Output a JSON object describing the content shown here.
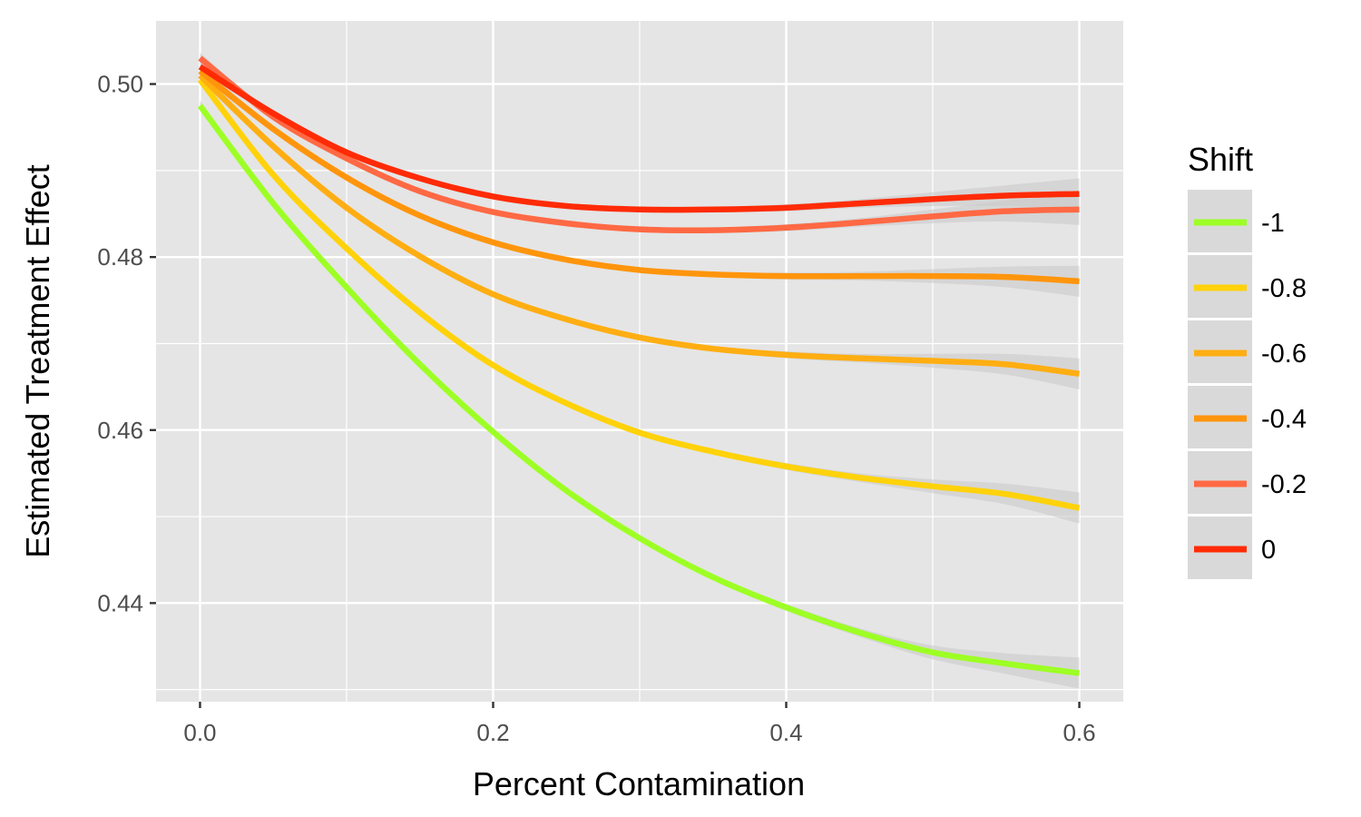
{
  "chart_data": {
    "type": "line",
    "title": "",
    "xlabel": "Percent Contamination",
    "ylabel": "Estimated Treatment Effect",
    "xlim": [
      -0.03,
      0.63
    ],
    "ylim": [
      0.4286,
      0.5073
    ],
    "grid": true,
    "x_ticks": [
      0.0,
      0.2,
      0.4,
      0.6
    ],
    "x_tick_labels": [
      "0.0",
      "0.2",
      "0.4",
      "0.6"
    ],
    "y_ticks": [
      0.44,
      0.46,
      0.48,
      0.5
    ],
    "y_tick_labels": [
      "0.44",
      "0.46",
      "0.48",
      "0.50"
    ],
    "legend": {
      "title": "Shift",
      "position": "right"
    },
    "x": [
      0.0,
      0.05,
      0.1,
      0.15,
      0.2,
      0.25,
      0.3,
      0.35,
      0.4,
      0.45,
      0.5,
      0.55,
      0.6
    ],
    "series": [
      {
        "name": "-1",
        "color": "#9DFF24",
        "values": [
          0.4975,
          0.4862,
          0.4765,
          0.4676,
          0.4598,
          0.453,
          0.4475,
          0.443,
          0.4395,
          0.4366,
          0.4343,
          0.433,
          0.4319
        ],
        "band": [
          0.0006,
          0.0004,
          0.0003,
          0.0003,
          0.0003,
          0.0003,
          0.0003,
          0.0003,
          0.0004,
          0.0005,
          0.0008,
          0.0012,
          0.0018
        ]
      },
      {
        "name": "-0.8",
        "color": "#FFD20A",
        "values": [
          0.5005,
          0.4895,
          0.481,
          0.4736,
          0.4675,
          0.4631,
          0.4597,
          0.4575,
          0.4558,
          0.4545,
          0.4535,
          0.4526,
          0.451
        ],
        "band": [
          0.0006,
          0.0004,
          0.0003,
          0.0003,
          0.0003,
          0.0003,
          0.0003,
          0.0003,
          0.0004,
          0.0005,
          0.0008,
          0.0012,
          0.0018
        ]
      },
      {
        "name": "-0.6",
        "color": "#FFAE12",
        "values": [
          0.501,
          0.4928,
          0.4857,
          0.4801,
          0.4757,
          0.4728,
          0.4707,
          0.4694,
          0.4687,
          0.4683,
          0.468,
          0.4676,
          0.4665
        ],
        "band": [
          0.0006,
          0.0004,
          0.0003,
          0.0003,
          0.0003,
          0.0003,
          0.0003,
          0.0003,
          0.0004,
          0.0005,
          0.0008,
          0.0012,
          0.0018
        ]
      },
      {
        "name": "-0.4",
        "color": "#FF950C",
        "values": [
          0.5015,
          0.4948,
          0.4892,
          0.4848,
          0.4817,
          0.4797,
          0.4785,
          0.478,
          0.4778,
          0.4778,
          0.4778,
          0.4777,
          0.4772
        ],
        "band": [
          0.0006,
          0.0004,
          0.0003,
          0.0003,
          0.0003,
          0.0003,
          0.0003,
          0.0003,
          0.0004,
          0.0005,
          0.0008,
          0.0012,
          0.0018
        ]
      },
      {
        "name": "-0.2",
        "color": "#FF6944",
        "values": [
          0.503,
          0.4962,
          0.4914,
          0.4876,
          0.4852,
          0.4839,
          0.4832,
          0.4831,
          0.4834,
          0.484,
          0.4847,
          0.4853,
          0.4855
        ],
        "band": [
          0.0006,
          0.0004,
          0.0003,
          0.0003,
          0.0003,
          0.0003,
          0.0003,
          0.0003,
          0.0004,
          0.0005,
          0.0008,
          0.0012,
          0.0018
        ]
      },
      {
        "name": "0",
        "color": "#FF2B06",
        "values": [
          0.502,
          0.4966,
          0.4921,
          0.4891,
          0.487,
          0.4859,
          0.4855,
          0.4855,
          0.4857,
          0.4862,
          0.4867,
          0.4871,
          0.4873
        ],
        "band": [
          0.0006,
          0.0004,
          0.0003,
          0.0003,
          0.0003,
          0.0003,
          0.0003,
          0.0003,
          0.0004,
          0.0005,
          0.0008,
          0.0012,
          0.0018
        ]
      }
    ]
  },
  "colors": {
    "panel": "#E5E5E5",
    "grid": "#FFFFFF",
    "band": "#C8C8C8",
    "legend_key": "#D9D9D9",
    "tick": "#333333"
  }
}
